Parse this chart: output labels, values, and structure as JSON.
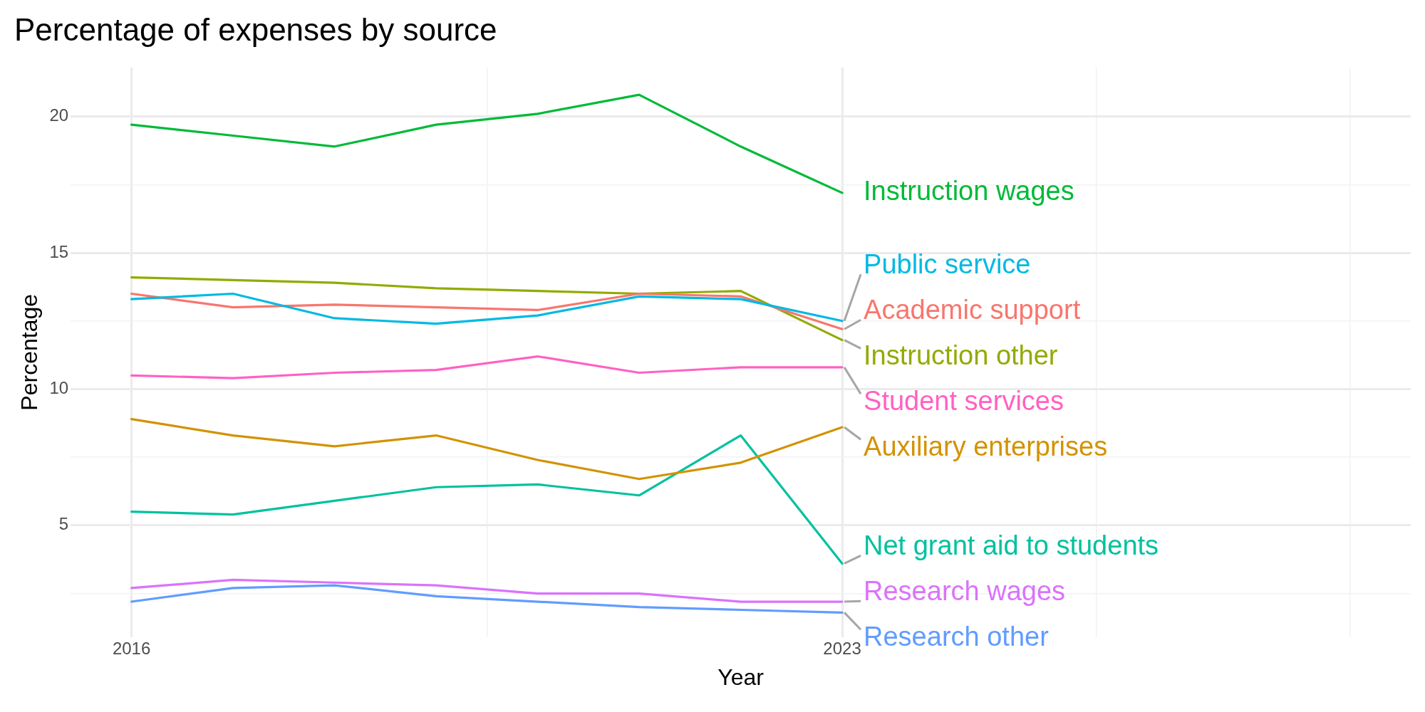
{
  "chart_data": {
    "type": "line",
    "title": "Percentage of expenses by source",
    "xlabel": "Year",
    "ylabel": "Percentage",
    "x": [
      2016,
      2017,
      2018,
      2019,
      2020,
      2021,
      2022,
      2023
    ],
    "xlim": [
      2015.4,
      2028.6
    ],
    "xticks": [
      2016,
      {
        "value": 2019.5,
        "label": null
      },
      2023,
      {
        "value": 2025.5,
        "label": null
      },
      {
        "value": 2028,
        "label": null
      }
    ],
    "ylim": [
      0.9,
      21.8
    ],
    "yticks": [
      {
        "value": 2.5,
        "label": null
      },
      5,
      {
        "value": 7.5,
        "label": null
      },
      10,
      {
        "value": 12.5,
        "label": null
      },
      15,
      {
        "value": 17.5,
        "label": null
      },
      20
    ],
    "grid": true,
    "marker": "none",
    "line_style": "solid",
    "series": [
      {
        "name": "Instruction wages",
        "color": "#00ba38",
        "values": [
          19.7,
          19.3,
          18.9,
          19.7,
          20.1,
          20.8,
          18.9,
          17.2
        ]
      },
      {
        "name": "Public service",
        "color": "#00b9e3",
        "values": [
          13.3,
          13.5,
          12.6,
          12.4,
          12.7,
          13.4,
          13.3,
          12.5
        ]
      },
      {
        "name": "Academic support",
        "color": "#f8766d",
        "values": [
          13.5,
          13.0,
          13.1,
          13.0,
          12.9,
          13.5,
          13.4,
          12.2
        ]
      },
      {
        "name": "Instruction other",
        "color": "#93aa00",
        "values": [
          14.1,
          14.0,
          13.9,
          13.7,
          13.6,
          13.5,
          13.6,
          11.8
        ]
      },
      {
        "name": "Student services",
        "color": "#ff61c3",
        "values": [
          10.5,
          10.4,
          10.6,
          10.7,
          11.2,
          10.6,
          10.8,
          10.8
        ]
      },
      {
        "name": "Auxiliary enterprises",
        "color": "#d39200",
        "values": [
          8.9,
          8.3,
          7.9,
          8.3,
          7.4,
          6.7,
          7.3,
          8.6
        ]
      },
      {
        "name": "Net grant aid to students",
        "color": "#00c19f",
        "values": [
          5.5,
          5.4,
          5.9,
          6.4,
          6.5,
          6.1,
          8.3,
          3.6
        ]
      },
      {
        "name": "Research wages",
        "color": "#db72fb",
        "values": [
          2.7,
          3.0,
          2.9,
          2.8,
          2.5,
          2.5,
          2.2,
          2.2
        ]
      },
      {
        "name": "Research other",
        "color": "#619cff",
        "values": [
          2.2,
          2.7,
          2.8,
          2.4,
          2.2,
          2.0,
          1.9,
          1.8
        ]
      }
    ]
  }
}
